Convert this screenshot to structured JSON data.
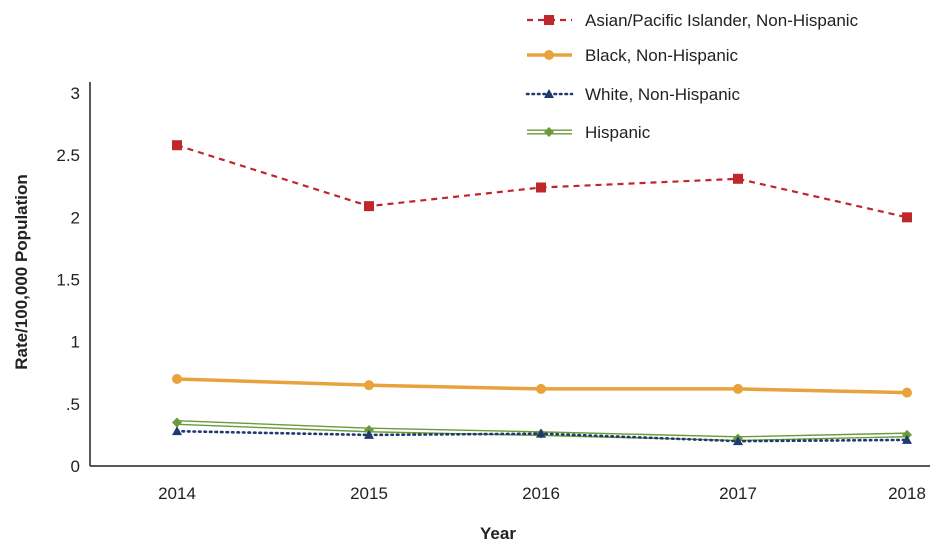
{
  "chart_data": {
    "type": "line",
    "title": "",
    "xlabel": "Year",
    "ylabel": "Rate/100,000 Population",
    "x": [
      "2014",
      "2015",
      "2016",
      "2017",
      "2018"
    ],
    "yticks": [
      {
        "value": 0,
        "label": "0"
      },
      {
        "value": 0.5,
        "label": ".5"
      },
      {
        "value": 1,
        "label": "1"
      },
      {
        "value": 1.5,
        "label": "1.5"
      },
      {
        "value": 2,
        "label": "2"
      },
      {
        "value": 2.5,
        "label": "2.5"
      },
      {
        "value": 3,
        "label": "3"
      }
    ],
    "ylim": [
      0,
      3.1
    ],
    "grid": false,
    "legend_position": "top-right",
    "series": [
      {
        "name": "Asian/Pacific Islander, Non-Hispanic",
        "color": "#c0272d",
        "line_style": "dashed",
        "marker": "square",
        "values": [
          2.58,
          2.09,
          2.24,
          2.31,
          2.0
        ]
      },
      {
        "name": "Black, Non-Hispanic",
        "color": "#e8a33d",
        "line_style": "solid-thick",
        "marker": "circle",
        "values": [
          0.7,
          0.65,
          0.62,
          0.62,
          0.59
        ]
      },
      {
        "name": "White, Non-Hispanic",
        "color": "#1f3a6e",
        "line_style": "dotted",
        "marker": "triangle",
        "values": [
          0.28,
          0.25,
          0.26,
          0.2,
          0.21
        ]
      },
      {
        "name": "Hispanic",
        "color": "#6a9a3a",
        "line_style": "double",
        "marker": "diamond",
        "values": [
          0.35,
          0.29,
          0.26,
          0.22,
          0.25
        ]
      }
    ]
  }
}
